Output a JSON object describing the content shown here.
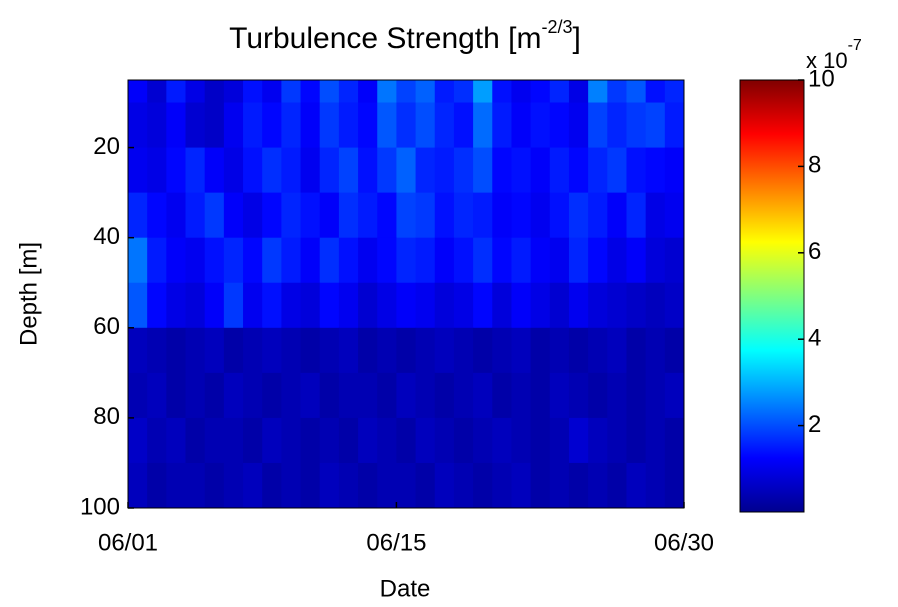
{
  "chart_data": {
    "type": "heatmap",
    "title": "Turbulence Strength [m",
    "title_superscript": "-2/3",
    "title_end": "]",
    "x_label": "Date",
    "y_label": "Depth [m]",
    "xlim": [
      1,
      30
    ],
    "xticks": [
      {
        "value": 1,
        "label": "06/01"
      },
      {
        "value": 15,
        "label": "06/15"
      },
      {
        "value": 30,
        "label": "06/30"
      }
    ],
    "ylim": [
      100,
      5
    ],
    "yticks": [
      20,
      40,
      60,
      80,
      100
    ],
    "x_bins": [
      1,
      2,
      3,
      4,
      5,
      6,
      7,
      8,
      9,
      10,
      11,
      12,
      13,
      14,
      15,
      16,
      17,
      18,
      19,
      20,
      21,
      22,
      23,
      24,
      25,
      26,
      27,
      28,
      29,
      30
    ],
    "y_bins": [
      5,
      10,
      20,
      30,
      40,
      50,
      60,
      70,
      80,
      90,
      100
    ],
    "z": [
      [
        1.2,
        0.8,
        1.5,
        1.0,
        0.7,
        0.9,
        1.4,
        1.1,
        1.8,
        1.3,
        2.0,
        1.6,
        1.2,
        2.4,
        1.9,
        2.2,
        1.5,
        1.7,
        2.8,
        1.4,
        1.1,
        1.3,
        1.6,
        1.0,
        2.5,
        1.8,
        2.1,
        1.4,
        1.6
      ],
      [
        1.0,
        0.9,
        1.2,
        0.8,
        0.7,
        1.1,
        1.5,
        1.3,
        1.6,
        1.2,
        1.8,
        1.5,
        1.3,
        2.1,
        1.7,
        2.0,
        1.6,
        1.4,
        2.3,
        1.5,
        1.2,
        1.4,
        1.3,
        1.1,
        1.9,
        1.6,
        1.8,
        1.9,
        1.5
      ],
      [
        1.1,
        1.0,
        1.3,
        1.6,
        1.2,
        1.0,
        1.4,
        1.7,
        1.5,
        1.1,
        1.6,
        1.9,
        1.4,
        1.8,
        2.2,
        1.6,
        1.5,
        1.7,
        2.0,
        1.3,
        1.4,
        1.2,
        1.5,
        1.3,
        1.6,
        1.8,
        1.4,
        1.3,
        1.2
      ],
      [
        1.6,
        1.3,
        1.1,
        1.5,
        1.8,
        1.2,
        1.0,
        1.3,
        1.6,
        1.4,
        1.2,
        1.7,
        1.5,
        1.3,
        1.9,
        1.8,
        1.4,
        1.6,
        1.5,
        1.2,
        1.3,
        1.1,
        1.4,
        1.7,
        1.5,
        1.2,
        1.6,
        1.0,
        1.1
      ],
      [
        2.4,
        1.5,
        1.2,
        1.1,
        1.4,
        1.6,
        1.3,
        1.8,
        1.5,
        1.2,
        1.7,
        1.4,
        1.1,
        1.3,
        1.6,
        1.5,
        1.2,
        1.4,
        1.7,
        1.3,
        1.5,
        1.2,
        1.1,
        1.6,
        1.3,
        1.0,
        1.2,
        0.9,
        0.8
      ],
      [
        2.1,
        1.3,
        1.0,
        0.9,
        1.2,
        1.8,
        1.1,
        1.4,
        1.0,
        0.9,
        1.3,
        1.1,
        0.8,
        1.0,
        1.2,
        1.1,
        0.9,
        1.0,
        1.3,
        0.9,
        1.2,
        1.0,
        0.8,
        1.1,
        0.9,
        0.8,
        0.7,
        0.6,
        0.7
      ],
      [
        0.6,
        0.5,
        0.4,
        0.5,
        0.6,
        0.4,
        0.5,
        0.6,
        0.5,
        0.4,
        0.5,
        0.6,
        0.4,
        0.5,
        0.4,
        0.5,
        0.6,
        0.5,
        0.4,
        0.5,
        0.6,
        0.4,
        0.5,
        0.4,
        0.5,
        0.6,
        0.4,
        0.5,
        0.4
      ],
      [
        0.5,
        0.6,
        0.4,
        0.5,
        0.4,
        0.6,
        0.5,
        0.4,
        0.5,
        0.6,
        0.4,
        0.5,
        0.5,
        0.4,
        0.6,
        0.5,
        0.4,
        0.5,
        0.6,
        0.4,
        0.5,
        0.4,
        0.6,
        0.5,
        0.4,
        0.5,
        0.4,
        0.5,
        0.6
      ],
      [
        0.7,
        0.5,
        0.6,
        0.4,
        0.5,
        0.5,
        0.4,
        0.6,
        0.5,
        0.4,
        0.5,
        0.4,
        0.6,
        0.5,
        0.4,
        0.6,
        0.5,
        0.4,
        0.5,
        0.6,
        0.5,
        0.4,
        0.5,
        0.8,
        0.6,
        0.5,
        0.4,
        0.5,
        0.4
      ],
      [
        0.6,
        0.4,
        0.5,
        0.5,
        0.4,
        0.5,
        0.6,
        0.4,
        0.5,
        0.4,
        0.6,
        0.5,
        0.4,
        0.5,
        0.5,
        0.4,
        0.6,
        0.5,
        0.4,
        0.5,
        0.6,
        0.4,
        0.5,
        0.4,
        0.5,
        0.4,
        0.6,
        0.5,
        0.4
      ]
    ],
    "colormap": "jet",
    "clim": [
      0,
      10
    ],
    "cticks": [
      2,
      4,
      6,
      8,
      10
    ],
    "colorbar_multiplier": "x 10",
    "colorbar_exponent": "-7"
  }
}
